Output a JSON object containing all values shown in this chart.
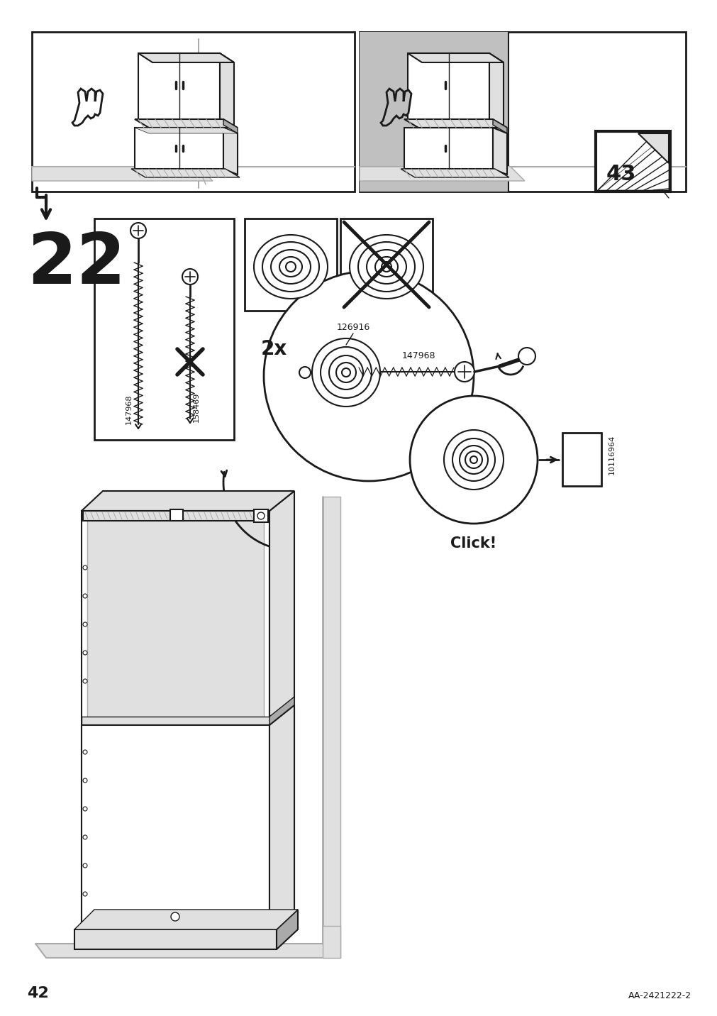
{
  "page_number": "42",
  "step_number": "22",
  "doc_id": "AA-2421222-2",
  "bg_color": "#ffffff",
  "line_color": "#1a1a1a",
  "gray_fill": "#c0c0c0",
  "mid_gray": "#aaaaaa",
  "light_gray": "#e0e0e0",
  "part_ids": [
    "147968",
    "158469",
    "126916",
    "10116964"
  ],
  "quantity_label": "2x",
  "next_page": "43",
  "click_label": "Click!"
}
